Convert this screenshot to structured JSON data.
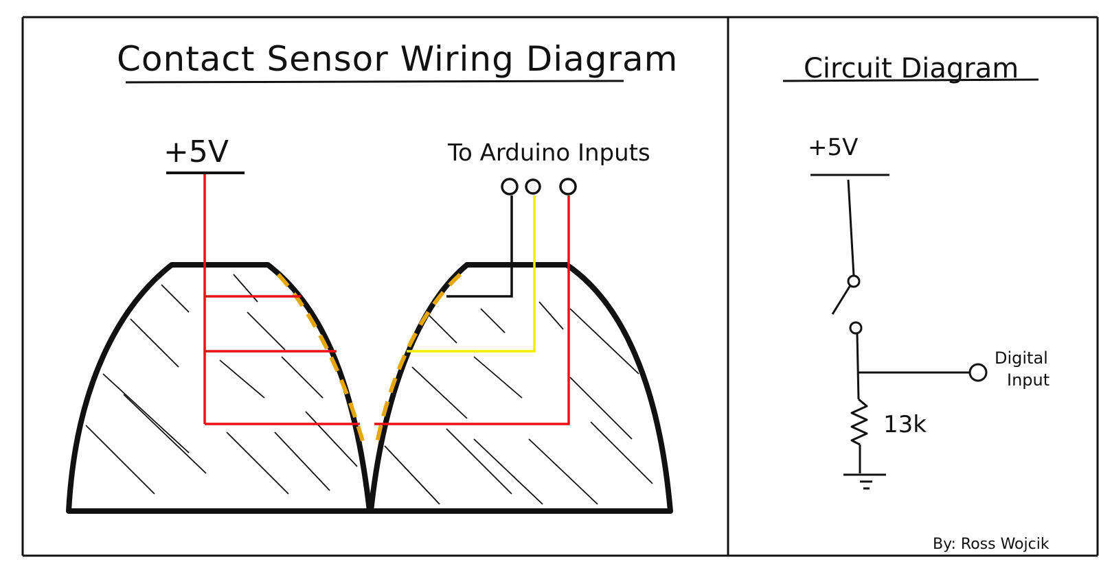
{
  "left_panel": {
    "title": "Contact Sensor Wiring Diagram",
    "supply_label": "+5V",
    "inputs_label": "To Arduino Inputs"
  },
  "right_panel": {
    "title": "Circuit Diagram",
    "supply_label": "+5V",
    "resistor_label": "13k",
    "output_label_line1": "Digital",
    "output_label_line2": "Input",
    "author": "By: Ross Wojcik"
  },
  "colors": {
    "ink": "#111111",
    "red_wire": "#ee1111",
    "yellow_wire": "#f2ee00",
    "contact_strip": "#e6a800",
    "background": "#ffffff"
  }
}
